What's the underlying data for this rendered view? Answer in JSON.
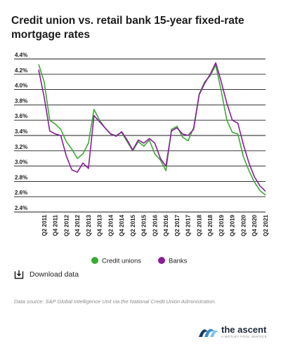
{
  "page": {
    "title": "Credit union vs. retail bank 15-year fixed-rate mortgage rates",
    "download_label": "Download data",
    "source_note": "Data source: S&P Global Intelligence Unit via the National Credit Union Administration.",
    "logo": {
      "name": "the ascent",
      "tagline": "A MOTLEY FOOL SERVICE"
    }
  },
  "chart_data": {
    "type": "line",
    "ylim": [
      2.4,
      4.4
    ],
    "yticks": [
      "4.4%",
      "4.2%",
      "4.0%",
      "3.8%",
      "3.6%",
      "3.4%",
      "3.2%",
      "3.0%",
      "2.8%",
      "2.6%",
      "2.4%"
    ],
    "xtick_labels": [
      "Q2 2011",
      "Q4 2011",
      "Q2 2012",
      "Q4 2012",
      "Q2 2013",
      "Q4 2013",
      "Q2 2014",
      "Q4 2014",
      "Q2 2015",
      "Q4 2015",
      "Q2 2016",
      "Q4 2016",
      "Q2 2017",
      "Q4 2017",
      "Q2 2018",
      "Q4 2018",
      "Q2 2019",
      "Q4 2019",
      "Q2 2020",
      "Q4 2020",
      "Q2 2021"
    ],
    "x": [
      "Q1 2011",
      "Q2 2011",
      "Q3 2011",
      "Q4 2011",
      "Q1 2012",
      "Q2 2012",
      "Q3 2012",
      "Q4 2012",
      "Q1 2013",
      "Q2 2013",
      "Q3 2013",
      "Q4 2013",
      "Q1 2014",
      "Q2 2014",
      "Q3 2014",
      "Q4 2014",
      "Q1 2015",
      "Q2 2015",
      "Q3 2015",
      "Q4 2015",
      "Q1 2016",
      "Q2 2016",
      "Q3 2016",
      "Q4 2016",
      "Q1 2017",
      "Q2 2017",
      "Q3 2017",
      "Q4 2017",
      "Q1 2018",
      "Q2 2018",
      "Q3 2018",
      "Q4 2018",
      "Q1 2019",
      "Q2 2019",
      "Q3 2019",
      "Q4 2019",
      "Q1 2020",
      "Q2 2020",
      "Q3 2020",
      "Q4 2020",
      "Q1 2021",
      "Q2 2021"
    ],
    "series": [
      {
        "name": "Credit unions",
        "color": "#3aaa35",
        "values": [
          4.33,
          4.1,
          3.6,
          3.55,
          3.48,
          3.32,
          3.22,
          3.1,
          3.16,
          3.3,
          3.74,
          3.6,
          3.5,
          3.42,
          3.4,
          3.44,
          3.32,
          3.2,
          3.32,
          3.26,
          3.34,
          3.16,
          3.08,
          2.94,
          3.48,
          3.52,
          3.38,
          3.33,
          3.5,
          3.94,
          4.1,
          4.18,
          4.32,
          3.98,
          3.6,
          3.44,
          3.42,
          3.12,
          2.94,
          2.79,
          2.68,
          2.62
        ]
      },
      {
        "name": "Banks",
        "color": "#8a1c9b",
        "values": [
          4.26,
          3.9,
          3.46,
          3.42,
          3.4,
          3.13,
          2.95,
          2.92,
          3.04,
          2.97,
          3.66,
          3.58,
          3.5,
          3.42,
          3.39,
          3.45,
          3.34,
          3.21,
          3.34,
          3.3,
          3.36,
          3.3,
          3.1,
          3.0,
          3.46,
          3.5,
          3.42,
          3.4,
          3.48,
          3.93,
          4.08,
          4.2,
          4.35,
          4.1,
          3.82,
          3.6,
          3.56,
          3.28,
          3.04,
          2.86,
          2.74,
          2.67
        ]
      }
    ]
  }
}
